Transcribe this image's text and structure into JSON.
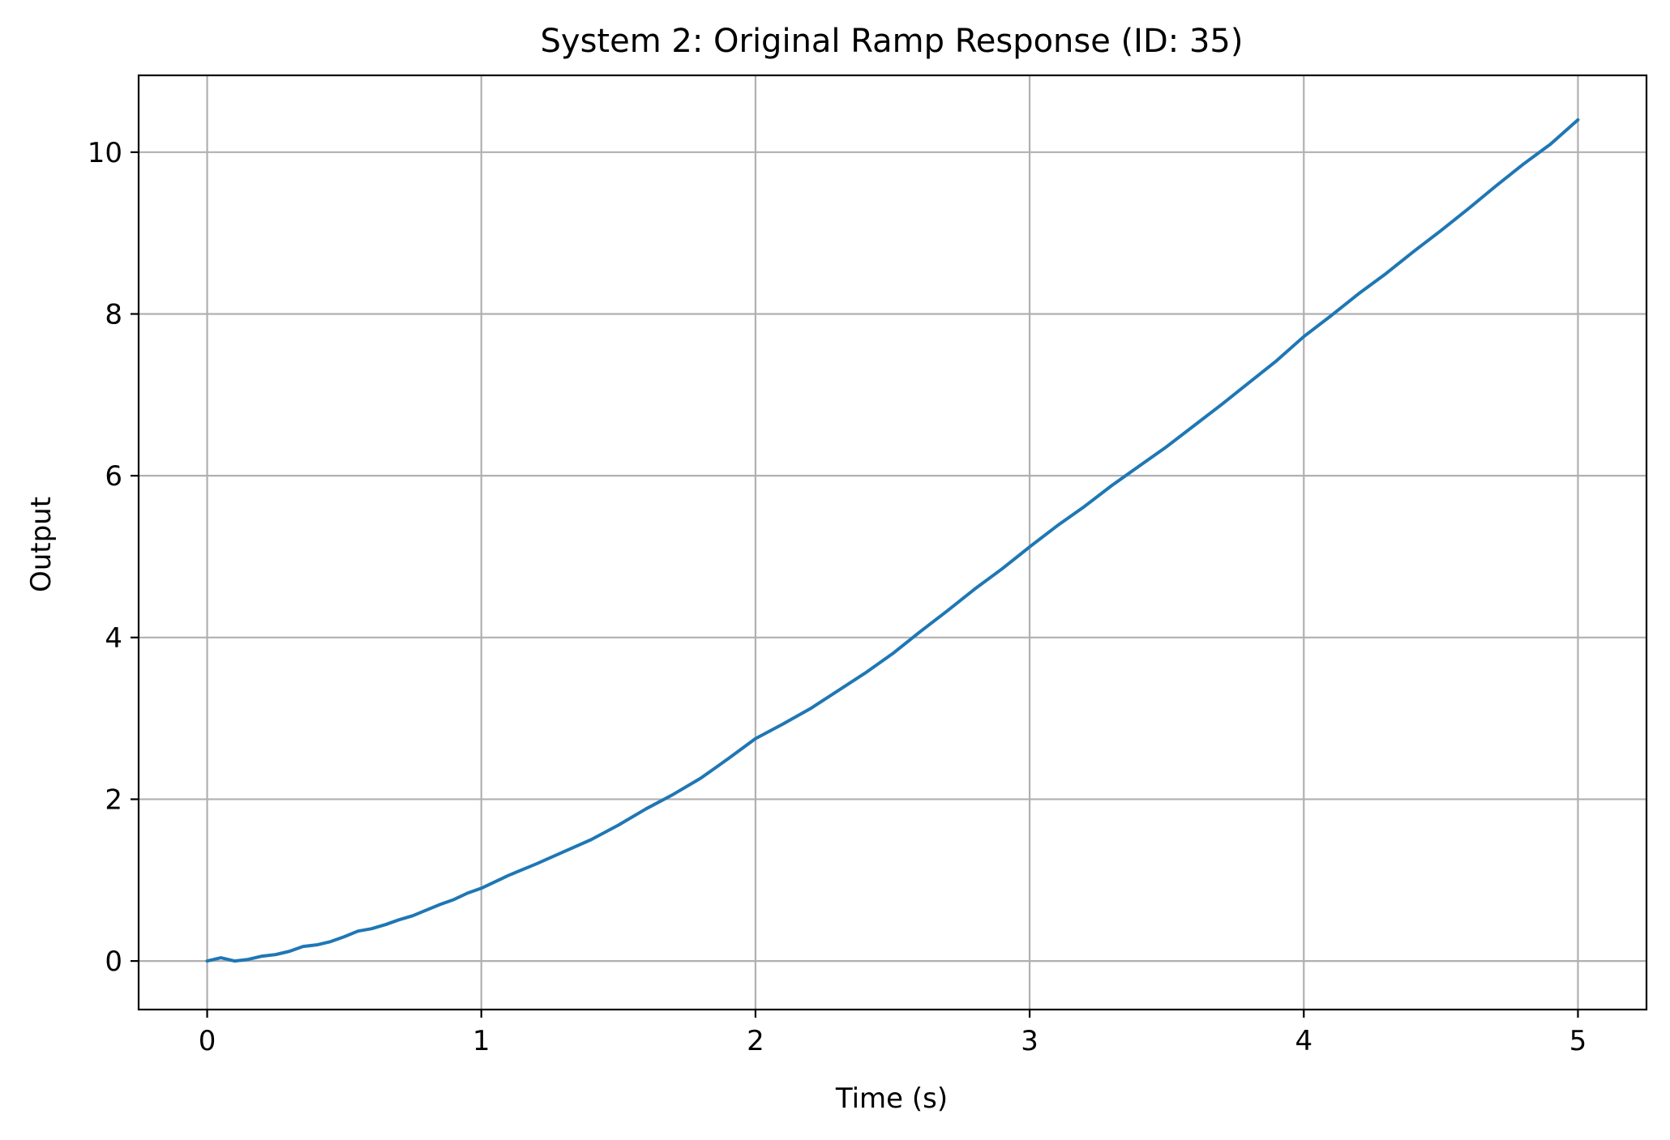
{
  "chart_data": {
    "type": "line",
    "title": "System 2: Original Ramp Response (ID: 35)",
    "xlabel": "Time (s)",
    "ylabel": "Output",
    "xlim": [
      -0.25,
      5.25
    ],
    "ylim": [
      -0.6,
      10.95
    ],
    "xticks": [
      0,
      1,
      2,
      3,
      4,
      5
    ],
    "yticks": [
      0,
      2,
      4,
      6,
      8,
      10
    ],
    "grid": true,
    "series": [
      {
        "color": "#1f77b4",
        "x": [
          0,
          0.05,
          0.1,
          0.15,
          0.2,
          0.25,
          0.3,
          0.35,
          0.4,
          0.45,
          0.5,
          0.55,
          0.6,
          0.65,
          0.7,
          0.75,
          0.8,
          0.85,
          0.9,
          0.95,
          1.0,
          1.1,
          1.2,
          1.3,
          1.4,
          1.5,
          1.6,
          1.7,
          1.8,
          1.9,
          2.0,
          2.1,
          2.2,
          2.3,
          2.4,
          2.5,
          2.6,
          2.7,
          2.8,
          2.9,
          3.0,
          3.1,
          3.2,
          3.3,
          3.4,
          3.5,
          3.6,
          3.7,
          3.8,
          3.9,
          4.0,
          4.1,
          4.2,
          4.3,
          4.4,
          4.5,
          4.6,
          4.7,
          4.8,
          4.9,
          5.0
        ],
        "y": [
          0.0,
          0.04,
          0.0,
          0.02,
          0.06,
          0.08,
          0.12,
          0.18,
          0.2,
          0.24,
          0.3,
          0.37,
          0.4,
          0.45,
          0.51,
          0.56,
          0.63,
          0.7,
          0.76,
          0.84,
          0.9,
          1.06,
          1.2,
          1.35,
          1.5,
          1.68,
          1.88,
          2.06,
          2.26,
          2.5,
          2.75,
          2.93,
          3.12,
          3.34,
          3.56,
          3.8,
          4.07,
          4.33,
          4.6,
          4.85,
          5.12,
          5.38,
          5.62,
          5.88,
          6.12,
          6.36,
          6.62,
          6.88,
          7.15,
          7.42,
          7.72,
          7.98,
          8.25,
          8.5,
          8.77,
          9.03,
          9.3,
          9.58,
          9.85,
          10.1,
          10.4
        ]
      }
    ]
  }
}
